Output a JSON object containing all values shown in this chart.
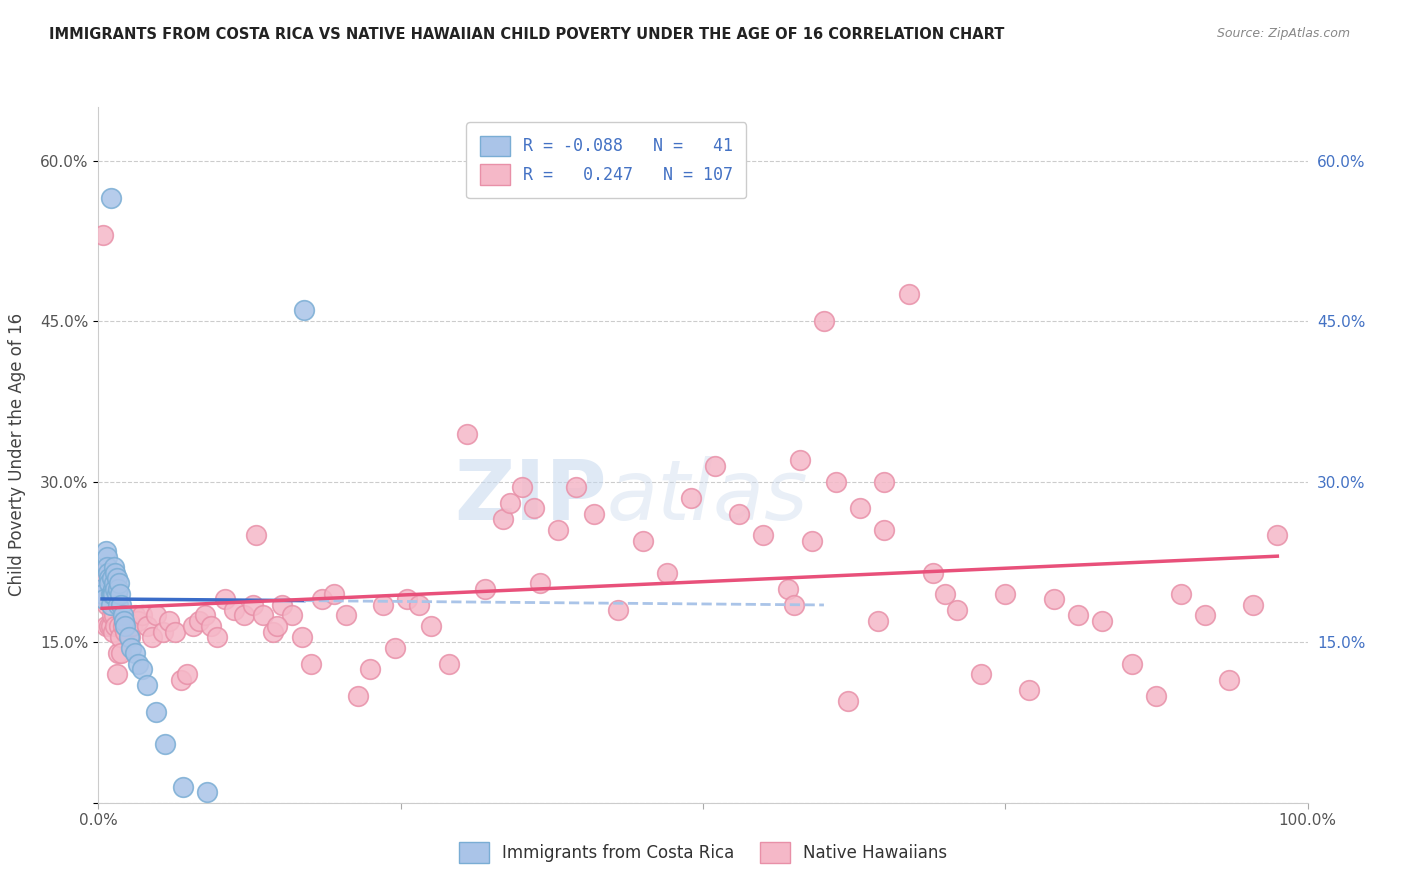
{
  "title": "IMMIGRANTS FROM COSTA RICA VS NATIVE HAWAIIAN CHILD POVERTY UNDER THE AGE OF 16 CORRELATION CHART",
  "source": "Source: ZipAtlas.com",
  "ylabel": "Child Poverty Under the Age of 16",
  "xlim": [
    0,
    1.0
  ],
  "ylim": [
    0,
    0.65
  ],
  "yticks": [
    0.0,
    0.15,
    0.3,
    0.45,
    0.6
  ],
  "ytick_labels": [
    "",
    "15.0%",
    "30.0%",
    "45.0%",
    "60.0%"
  ],
  "right_ytick_labels": [
    "",
    "15.0%",
    "30.0%",
    "45.0%",
    "60.0%"
  ],
  "legend_labels": [
    "Immigrants from Costa Rica",
    "Native Hawaiians"
  ],
  "blue_R": "-0.088",
  "blue_N": "41",
  "pink_R": "0.247",
  "pink_N": "107",
  "blue_color": "#aac4e8",
  "pink_color": "#f5b8c8",
  "blue_edge": "#7aadd4",
  "pink_edge": "#e890a8",
  "blue_line_color": "#3a6cc8",
  "pink_line_color": "#e8507a",
  "blue_dashed_color": "#aac4e8",
  "watermark_color": "#dce8f5",
  "background_color": "#ffffff",
  "blue_scatter_x": [
    0.01,
    0.003,
    0.004,
    0.005,
    0.006,
    0.007,
    0.007,
    0.008,
    0.009,
    0.009,
    0.01,
    0.01,
    0.011,
    0.011,
    0.012,
    0.012,
    0.013,
    0.013,
    0.014,
    0.014,
    0.015,
    0.015,
    0.016,
    0.016,
    0.017,
    0.018,
    0.019,
    0.02,
    0.021,
    0.022,
    0.025,
    0.027,
    0.03,
    0.033,
    0.036,
    0.04,
    0.048,
    0.055,
    0.07,
    0.09,
    0.17
  ],
  "blue_scatter_y": [
    0.565,
    0.2,
    0.195,
    0.19,
    0.235,
    0.23,
    0.22,
    0.215,
    0.21,
    0.205,
    0.195,
    0.185,
    0.21,
    0.195,
    0.2,
    0.195,
    0.22,
    0.205,
    0.215,
    0.2,
    0.21,
    0.195,
    0.2,
    0.185,
    0.205,
    0.195,
    0.185,
    0.175,
    0.17,
    0.165,
    0.155,
    0.145,
    0.14,
    0.13,
    0.125,
    0.11,
    0.085,
    0.055,
    0.015,
    0.01,
    0.46
  ],
  "pink_scatter_x": [
    0.003,
    0.004,
    0.005,
    0.006,
    0.007,
    0.008,
    0.009,
    0.01,
    0.011,
    0.012,
    0.013,
    0.014,
    0.015,
    0.016,
    0.017,
    0.018,
    0.019,
    0.02,
    0.021,
    0.022,
    0.024,
    0.026,
    0.028,
    0.03,
    0.033,
    0.036,
    0.04,
    0.044,
    0.048,
    0.053,
    0.058,
    0.063,
    0.068,
    0.073,
    0.078,
    0.083,
    0.088,
    0.093,
    0.098,
    0.105,
    0.112,
    0.12,
    0.128,
    0.136,
    0.144,
    0.152,
    0.16,
    0.168,
    0.176,
    0.185,
    0.195,
    0.205,
    0.215,
    0.225,
    0.235,
    0.245,
    0.255,
    0.265,
    0.275,
    0.29,
    0.305,
    0.32,
    0.335,
    0.35,
    0.365,
    0.38,
    0.395,
    0.41,
    0.43,
    0.45,
    0.47,
    0.49,
    0.51,
    0.53,
    0.55,
    0.57,
    0.59,
    0.61,
    0.63,
    0.65,
    0.67,
    0.69,
    0.71,
    0.73,
    0.75,
    0.77,
    0.79,
    0.81,
    0.83,
    0.855,
    0.875,
    0.895,
    0.915,
    0.935,
    0.955,
    0.975,
    0.65,
    0.7,
    0.6,
    0.58,
    0.13,
    0.148,
    0.34,
    0.36,
    0.62,
    0.645,
    0.575
  ],
  "pink_scatter_y": [
    0.215,
    0.53,
    0.195,
    0.165,
    0.185,
    0.195,
    0.165,
    0.165,
    0.175,
    0.16,
    0.175,
    0.165,
    0.12,
    0.14,
    0.165,
    0.155,
    0.14,
    0.165,
    0.17,
    0.16,
    0.17,
    0.155,
    0.165,
    0.175,
    0.17,
    0.175,
    0.165,
    0.155,
    0.175,
    0.16,
    0.17,
    0.16,
    0.115,
    0.12,
    0.165,
    0.17,
    0.175,
    0.165,
    0.155,
    0.19,
    0.18,
    0.175,
    0.185,
    0.175,
    0.16,
    0.185,
    0.175,
    0.155,
    0.13,
    0.19,
    0.195,
    0.175,
    0.1,
    0.125,
    0.185,
    0.145,
    0.19,
    0.185,
    0.165,
    0.13,
    0.345,
    0.2,
    0.265,
    0.295,
    0.205,
    0.255,
    0.295,
    0.27,
    0.18,
    0.245,
    0.215,
    0.285,
    0.315,
    0.27,
    0.25,
    0.2,
    0.245,
    0.3,
    0.275,
    0.255,
    0.475,
    0.215,
    0.18,
    0.12,
    0.195,
    0.105,
    0.19,
    0.175,
    0.17,
    0.13,
    0.1,
    0.195,
    0.175,
    0.115,
    0.185,
    0.25,
    0.3,
    0.195,
    0.45,
    0.32,
    0.25,
    0.165,
    0.28,
    0.275,
    0.095,
    0.17,
    0.185
  ]
}
